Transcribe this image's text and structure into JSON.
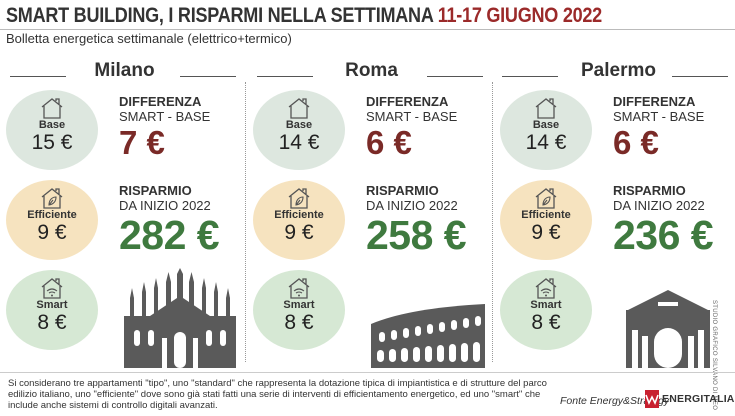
{
  "header": {
    "title_main": "SMART BUILDING, I RISPARMI NELLA SETTIMANA",
    "title_dates": "11-17 GIUGNO 2022",
    "subtitle": "Bolletta energetica settimanale (elettrico+termico)"
  },
  "labels": {
    "base": "Base",
    "efficient": "Efficiente",
    "smart": "Smart",
    "diff_title": "DIFFERENZA",
    "diff_sub": "SMART - BASE",
    "saving_title": "RISPARMIO",
    "saving_sub": "DA INIZIO 2022"
  },
  "cities": [
    {
      "name": "Milano",
      "base": "15 €",
      "efficient": "9 €",
      "smart": "8 €",
      "difference": "7 €",
      "saving": "282 €",
      "landmark": "duomo-milano"
    },
    {
      "name": "Roma",
      "base": "14 €",
      "efficient": "9 €",
      "smart": "8 €",
      "difference": "6 €",
      "saving": "258 €",
      "landmark": "colosseo"
    },
    {
      "name": "Palermo",
      "base": "14 €",
      "efficient": "9 €",
      "smart": "8 €",
      "difference": "6 €",
      "saving": "236 €",
      "landmark": "porta-nuova"
    }
  ],
  "footer": {
    "note": "Si considerano tre appartamenti \"tipo\", uno \"standard\" che rappresenta la dotazione tipica di impiantistica e di strutture del parco edilizio italiano, uno \"efficiente\" dove sono già stati fatti una serie di interventi di efficientamento energetico, ed uno \"smart\" che include anche sistemi di controllo digitali avanzati.",
    "source": "Fonte Energy&Strategy",
    "brand": "ENERGITALIA",
    "credit": "STUDIO GRAFICO SILVANO DI MEO"
  },
  "colors": {
    "title_accent": "#9b2a2a",
    "difference": "#7a2a27",
    "saving": "#3f7a3f",
    "base_circle": "#dde7df",
    "efficient_circle": "#f6e3bf",
    "smart_circle": "#d6e8d4",
    "brand": "#c8202f"
  },
  "icons": {
    "base": "house-icon",
    "efficient": "house-leaf-icon",
    "smart": "house-wifi-icon"
  }
}
